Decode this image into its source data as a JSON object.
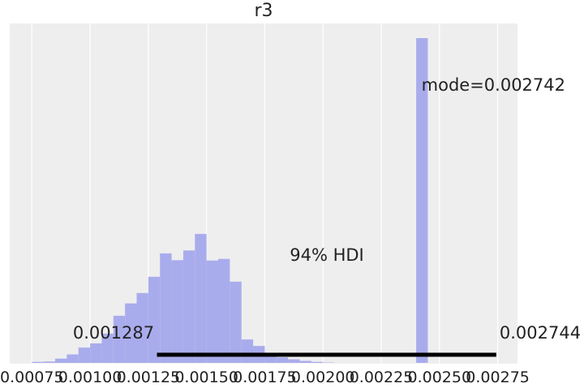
{
  "chart_data": {
    "type": "bar",
    "title": "r3",
    "xlabel": "",
    "ylabel": "",
    "xlim": [
      0.000655,
      0.002835
    ],
    "xticks": [
      0.00075,
      0.001,
      0.00125,
      0.0015,
      0.00175,
      0.002,
      0.00225,
      0.0025,
      0.00275
    ],
    "xtick_labels": [
      "0.00075",
      "0.00100",
      "0.00125",
      "0.00150",
      "0.00175",
      "0.00200",
      "0.00225",
      "0.00250",
      "0.00275"
    ],
    "grid": true,
    "bar_color": "#a9acec",
    "bin_edges": [
      0.00075,
      0.0008,
      0.00085,
      0.0009,
      0.00095,
      0.001,
      0.00105,
      0.0011,
      0.00115,
      0.0012,
      0.00125,
      0.0013,
      0.00135,
      0.0014,
      0.00145,
      0.0015,
      0.00155,
      0.0016,
      0.00165,
      0.0017,
      0.00175,
      0.0018,
      0.00185,
      0.0019,
      0.00195,
      0.002,
      0.00205,
      0.0021,
      0.00215,
      0.0022,
      0.00225,
      0.0023,
      0.00235,
      0.0024,
      0.00245,
      0.0025,
      0.00255,
      0.0026,
      0.00265,
      0.0027,
      0.00275
    ],
    "density": [
      0.003,
      0.004,
      0.013,
      0.026,
      0.047,
      0.06,
      0.09,
      0.145,
      0.183,
      0.215,
      0.265,
      0.337,
      0.316,
      0.346,
      0.397,
      0.315,
      0.32,
      0.25,
      0.072,
      0.052,
      0.022,
      0.017,
      0.011,
      0.006,
      0.003,
      0.001,
      0.0,
      0.0,
      0.0,
      0.0,
      0.0,
      0.0,
      0.0,
      1.0,
      0.0,
      0.0,
      0.0,
      0.0,
      0.0,
      0.0
    ],
    "hdi": {
      "label": "94% HDI",
      "low": 0.001287,
      "high": 0.002744,
      "low_label": "0.001287",
      "high_label": "0.002744"
    },
    "mode": {
      "value": 0.002742,
      "label": "mode=0.002742"
    }
  }
}
